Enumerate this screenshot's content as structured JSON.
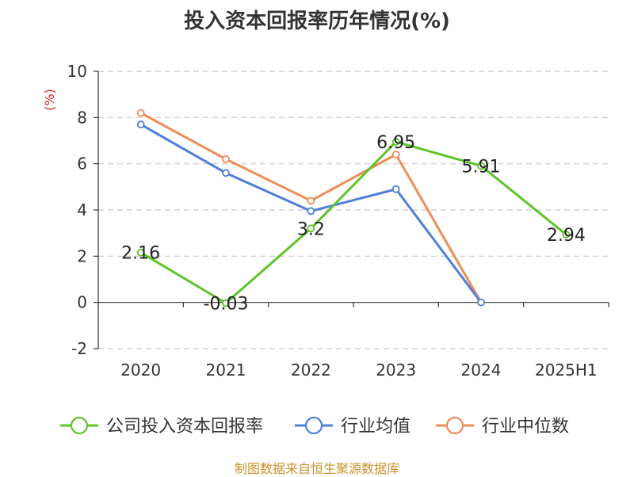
{
  "chart_data": {
    "type": "line",
    "title": "投入资本回报率历年情况(%)",
    "ylabel": "(%)",
    "xlabel": "",
    "categories": [
      "2020",
      "2021",
      "2022",
      "2023",
      "2024",
      "2025H1"
    ],
    "ylim": [
      -2,
      10
    ],
    "yticks": [
      -2,
      0,
      2,
      4,
      6,
      8,
      10
    ],
    "grid": true,
    "legend_position": "bottom",
    "series": [
      {
        "name": "公司投入资本回报率",
        "color": "#5ec42a",
        "values": [
          2.16,
          -0.03,
          3.2,
          6.95,
          5.91,
          2.94
        ],
        "labels": [
          "2.16",
          "-0.03",
          "3.2",
          "6.95",
          "5.91",
          "2.94"
        ]
      },
      {
        "name": "行业均值",
        "color": "#4f7fd8",
        "values": [
          7.7,
          5.6,
          3.95,
          4.9,
          0.0,
          null
        ]
      },
      {
        "name": "行业中位数",
        "color": "#f08c55",
        "values": [
          8.2,
          6.2,
          4.4,
          6.4,
          0.0,
          null
        ]
      }
    ]
  },
  "source": "制图数据来自恒生聚源数据库"
}
